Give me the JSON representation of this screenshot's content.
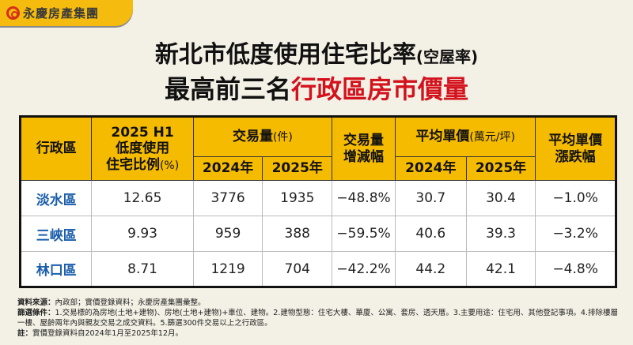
{
  "logo": {
    "text": "永慶房產集團"
  },
  "title": {
    "line1": "新北市低度使用住宅比率",
    "line1_suffix": "(空屋率)",
    "line2_a": "最高前三名",
    "line2_b": "行政區房市價量"
  },
  "colors": {
    "header": "#f5bb00",
    "district": "#1b5eab",
    "accent": "#d4121e"
  },
  "chart_data": {
    "type": "table",
    "headers": {
      "district": "行政區",
      "ratio_a": "2025 H1",
      "ratio_b": "低度使用",
      "ratio_c": "住宅比例",
      "ratio_unit": "(%)",
      "volume": "交易量",
      "volume_unit": "(件)",
      "y2024": "2024年",
      "y2025": "2025年",
      "vchg_a": "交易量",
      "vchg_b": "增減幅",
      "price": "平均單價",
      "price_unit": "(萬元/坪)",
      "pchg_a": "平均單價",
      "pchg_b": "漲跌幅"
    },
    "rows": [
      {
        "district": "淡水區",
        "ratio": "12.65",
        "vol2024": "3776",
        "vol2025": "1935",
        "vol_change": "−48.8%",
        "price2024": "30.7",
        "price2025": "30.4",
        "price_change": "−1.0%"
      },
      {
        "district": "三峽區",
        "ratio": "9.93",
        "vol2024": "959",
        "vol2025": "388",
        "vol_change": "−59.5%",
        "price2024": "40.6",
        "price2025": "39.3",
        "price_change": "−3.2%"
      },
      {
        "district": "林口區",
        "ratio": "8.71",
        "vol2024": "1219",
        "vol2025": "704",
        "vol_change": "−42.2%",
        "price2024": "44.2",
        "price2025": "42.1",
        "price_change": "−4.8%"
      }
    ]
  },
  "notes": {
    "source_label": "資料來源：",
    "source": "內政部；實價登錄資料；永慶房產集團彙整。",
    "filter_label": "篩選條件：",
    "filter": "1.交易標的為房地(土地+建物)、房地(土地+建物)+車位、建物。2.建物型態：住宅大樓、華廈、公寓、套房、透天厝。3.主要用途：住宅用、其他登記事項。4.排除樓層一樓、屋齡兩年內與親友交易之成交資料。5.篩選300件交易以上之行政區。",
    "note_label": "註：",
    "note": "實價登錄資料自2024年1月至2025年12月。"
  }
}
